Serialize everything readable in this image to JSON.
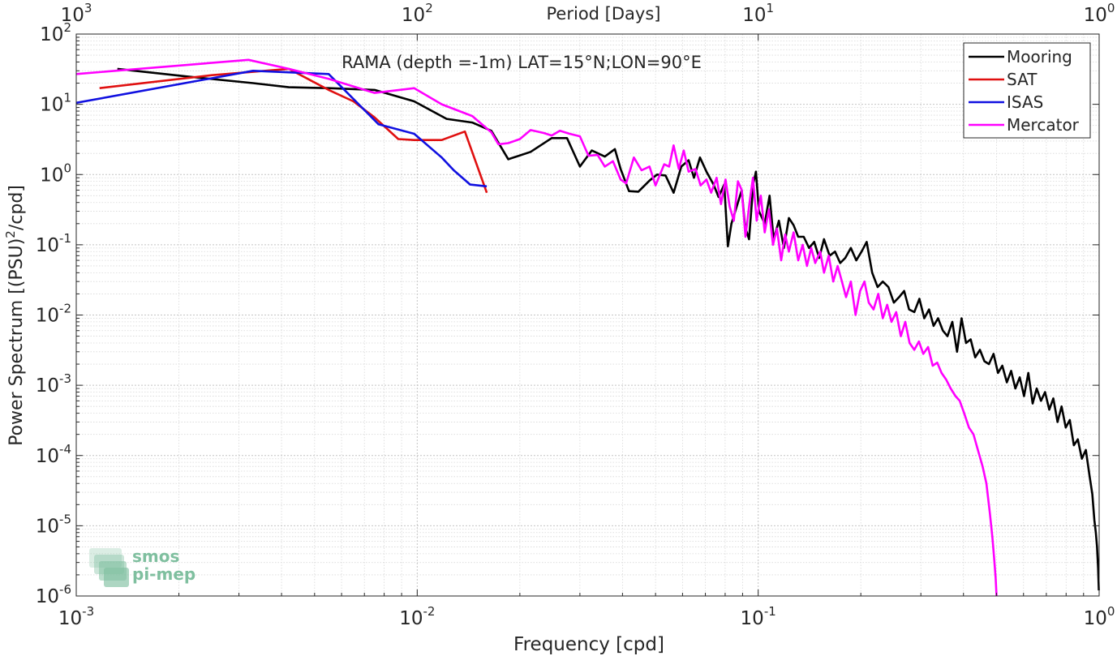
{
  "chart_data": {
    "type": "line",
    "title": "RAMA (depth =-1m) LAT=15°N;LON=90°E",
    "xlabel": "Frequency [cpd]",
    "ylabel": "Power Spectrum [(PSU)",
    "ylabel_sup": "2",
    "ylabel_tail": "/cpd]",
    "top_xlabel": "Period [Days]",
    "x_scale": "log",
    "y_scale": "log",
    "xlim": [
      0.001,
      1
    ],
    "ylim": [
      1e-06,
      100
    ],
    "grid": true,
    "legend_position": "top-right",
    "x_ticks": [
      {
        "value": 0.001,
        "base": "10",
        "exp": "-3"
      },
      {
        "value": 0.01,
        "base": "10",
        "exp": "-2"
      },
      {
        "value": 0.1,
        "base": "10",
        "exp": "-1"
      },
      {
        "value": 1,
        "base": "10",
        "exp": "0"
      }
    ],
    "top_ticks": [
      {
        "value": 0.001,
        "base": "10",
        "exp": "3"
      },
      {
        "value": 0.01,
        "base": "10",
        "exp": "2"
      },
      {
        "value": 0.1,
        "base": "10",
        "exp": "1"
      },
      {
        "value": 1,
        "base": "10",
        "exp": "0"
      }
    ],
    "y_ticks": [
      {
        "value": 100,
        "base": "10",
        "exp": "2"
      },
      {
        "value": 10,
        "base": "10",
        "exp": "1"
      },
      {
        "value": 1,
        "base": "10",
        "exp": "0"
      },
      {
        "value": 0.1,
        "base": "10",
        "exp": "-1"
      },
      {
        "value": 0.01,
        "base": "10",
        "exp": "-2"
      },
      {
        "value": 0.001,
        "base": "10",
        "exp": "-3"
      },
      {
        "value": 0.0001,
        "base": "10",
        "exp": "-4"
      },
      {
        "value": 1e-05,
        "base": "10",
        "exp": "-5"
      },
      {
        "value": 1e-06,
        "base": "10",
        "exp": "-6"
      }
    ],
    "series": [
      {
        "name": "Mooring",
        "color": "#000000",
        "points": [
          [
            0.00132,
            32
          ],
          [
            0.0021,
            25
          ],
          [
            0.0033,
            20
          ],
          [
            0.0042,
            17.5
          ],
          [
            0.0055,
            17
          ],
          [
            0.0075,
            16
          ],
          [
            0.0098,
            11
          ],
          [
            0.0122,
            6.2
          ],
          [
            0.0145,
            5.5
          ],
          [
            0.0165,
            4.2
          ],
          [
            0.0185,
            1.65
          ],
          [
            0.0215,
            2.1
          ],
          [
            0.0248,
            3.3
          ],
          [
            0.0275,
            3.3
          ],
          [
            0.03,
            1.3
          ],
          [
            0.0325,
            2.2
          ],
          [
            0.0355,
            1.8
          ],
          [
            0.038,
            2.3
          ],
          [
            0.0395,
            1.2
          ],
          [
            0.0418,
            0.58
          ],
          [
            0.0445,
            0.57
          ],
          [
            0.048,
            0.82
          ],
          [
            0.0505,
            1.0
          ],
          [
            0.0535,
            0.97
          ],
          [
            0.0565,
            0.55
          ],
          [
            0.0595,
            1.3
          ],
          [
            0.0625,
            1.6
          ],
          [
            0.0648,
            0.9
          ],
          [
            0.0675,
            1.75
          ],
          [
            0.0705,
            1.1
          ],
          [
            0.074,
            0.72
          ],
          [
            0.0765,
            0.48
          ],
          [
            0.0795,
            0.72
          ],
          [
            0.0815,
            0.095
          ],
          [
            0.0835,
            0.2
          ],
          [
            0.0865,
            0.35
          ],
          [
            0.0895,
            0.6
          ],
          [
            0.0915,
            0.18
          ],
          [
            0.094,
            0.12
          ],
          [
            0.0968,
            0.75
          ],
          [
            0.0985,
            1.1
          ],
          [
            0.1005,
            0.3
          ],
          [
            0.1045,
            0.2
          ],
          [
            0.108,
            0.5
          ],
          [
            0.111,
            0.12
          ],
          [
            0.115,
            0.22
          ],
          [
            0.119,
            0.09
          ],
          [
            0.123,
            0.24
          ],
          [
            0.127,
            0.19
          ],
          [
            0.131,
            0.13
          ],
          [
            0.136,
            0.13
          ],
          [
            0.141,
            0.09
          ],
          [
            0.146,
            0.11
          ],
          [
            0.151,
            0.065
          ],
          [
            0.156,
            0.12
          ],
          [
            0.162,
            0.07
          ],
          [
            0.168,
            0.08
          ],
          [
            0.174,
            0.055
          ],
          [
            0.18,
            0.065
          ],
          [
            0.187,
            0.09
          ],
          [
            0.194,
            0.06
          ],
          [
            0.201,
            0.08
          ],
          [
            0.208,
            0.11
          ],
          [
            0.216,
            0.04
          ],
          [
            0.224,
            0.025
          ],
          [
            0.232,
            0.03
          ],
          [
            0.241,
            0.025
          ],
          [
            0.25,
            0.015
          ],
          [
            0.259,
            0.018
          ],
          [
            0.268,
            0.022
          ],
          [
            0.277,
            0.012
          ],
          [
            0.287,
            0.011
          ],
          [
            0.297,
            0.017
          ],
          [
            0.307,
            0.009
          ],
          [
            0.317,
            0.012
          ],
          [
            0.327,
            0.007
          ],
          [
            0.337,
            0.009
          ],
          [
            0.348,
            0.006
          ],
          [
            0.359,
            0.005
          ],
          [
            0.371,
            0.008
          ],
          [
            0.383,
            0.003
          ],
          [
            0.395,
            0.009
          ],
          [
            0.407,
            0.004
          ],
          [
            0.42,
            0.0045
          ],
          [
            0.433,
            0.0025
          ],
          [
            0.447,
            0.0032
          ],
          [
            0.461,
            0.0022
          ],
          [
            0.475,
            0.002
          ],
          [
            0.49,
            0.0028
          ],
          [
            0.505,
            0.0015
          ],
          [
            0.52,
            0.0019
          ],
          [
            0.536,
            0.0011
          ],
          [
            0.552,
            0.0016
          ],
          [
            0.568,
            0.0009
          ],
          [
            0.585,
            0.0013
          ],
          [
            0.602,
            0.0007
          ],
          [
            0.62,
            0.0015
          ],
          [
            0.638,
            0.00055
          ],
          [
            0.656,
            0.0009
          ],
          [
            0.675,
            0.0006
          ],
          [
            0.694,
            0.0008
          ],
          [
            0.714,
            0.00045
          ],
          [
            0.734,
            0.00065
          ],
          [
            0.755,
            0.0003
          ],
          [
            0.776,
            0.0005
          ],
          [
            0.798,
            0.00025
          ],
          [
            0.82,
            0.00032
          ],
          [
            0.843,
            0.00014
          ],
          [
            0.866,
            0.00017
          ],
          [
            0.89,
            9e-05
          ],
          [
            0.914,
            0.00012
          ],
          [
            0.938,
            5e-05
          ],
          [
            0.955,
            2.8e-05
          ],
          [
            0.968,
            1.2e-05
          ],
          [
            0.978,
            8e-06
          ],
          [
            0.986,
            5e-06
          ],
          [
            0.993,
            2.5e-06
          ],
          [
            0.998,
            1.2e-06
          ]
        ]
      },
      {
        "name": "SAT",
        "color": "#e01010",
        "points": [
          [
            0.00117,
            17
          ],
          [
            0.0025,
            26
          ],
          [
            0.0042,
            32
          ],
          [
            0.0055,
            16
          ],
          [
            0.0065,
            11
          ],
          [
            0.0075,
            6.5
          ],
          [
            0.0088,
            3.2
          ],
          [
            0.0098,
            3.1
          ],
          [
            0.0118,
            3.1
          ],
          [
            0.0138,
            4.1
          ],
          [
            0.016,
            0.55
          ]
        ]
      },
      {
        "name": "ISAS",
        "color": "#1010e0",
        "points": [
          [
            0.001,
            10.5
          ],
          [
            0.0033,
            30
          ],
          [
            0.0055,
            27
          ],
          [
            0.0077,
            5.2
          ],
          [
            0.0098,
            3.8
          ],
          [
            0.0118,
            1.75
          ],
          [
            0.0128,
            1.15
          ],
          [
            0.0143,
            0.72
          ],
          [
            0.016,
            0.68
          ]
        ]
      },
      {
        "name": "Mercator",
        "color": "#ff00ff",
        "points": [
          [
            0.001,
            27
          ],
          [
            0.0032,
            43
          ],
          [
            0.0042,
            32
          ],
          [
            0.0055,
            23
          ],
          [
            0.0075,
            14.5
          ],
          [
            0.0098,
            17
          ],
          [
            0.0118,
            10
          ],
          [
            0.0145,
            6.8
          ],
          [
            0.0165,
            4.0
          ],
          [
            0.0173,
            2.7
          ],
          [
            0.0185,
            2.8
          ],
          [
            0.02,
            3.2
          ],
          [
            0.0215,
            4.3
          ],
          [
            0.0235,
            3.9
          ],
          [
            0.0248,
            3.6
          ],
          [
            0.0262,
            4.2
          ],
          [
            0.028,
            3.8
          ],
          [
            0.03,
            3.5
          ],
          [
            0.0318,
            1.85
          ],
          [
            0.0338,
            1.9
          ],
          [
            0.0355,
            1.3
          ],
          [
            0.0375,
            1.55
          ],
          [
            0.0395,
            0.85
          ],
          [
            0.041,
            0.75
          ],
          [
            0.0432,
            1.75
          ],
          [
            0.0455,
            1.15
          ],
          [
            0.048,
            1.3
          ],
          [
            0.05,
            0.7
          ],
          [
            0.053,
            1.4
          ],
          [
            0.0548,
            1.3
          ],
          [
            0.0565,
            2.6
          ],
          [
            0.0585,
            1.2
          ],
          [
            0.0605,
            2.2
          ],
          [
            0.0625,
            1.1
          ],
          [
            0.0655,
            1.2
          ],
          [
            0.0678,
            0.7
          ],
          [
            0.0705,
            0.85
          ],
          [
            0.0728,
            0.55
          ],
          [
            0.0755,
            0.9
          ],
          [
            0.0778,
            0.38
          ],
          [
            0.0802,
            0.85
          ],
          [
            0.0825,
            0.35
          ],
          [
            0.0848,
            0.22
          ],
          [
            0.0872,
            0.8
          ],
          [
            0.0895,
            0.6
          ],
          [
            0.0918,
            0.13
          ],
          [
            0.0942,
            0.38
          ],
          [
            0.0965,
            0.9
          ],
          [
            0.099,
            0.22
          ],
          [
            0.1018,
            0.5
          ],
          [
            0.1045,
            0.15
          ],
          [
            0.1075,
            0.32
          ],
          [
            0.1105,
            0.1
          ],
          [
            0.1135,
            0.17
          ],
          [
            0.1168,
            0.06
          ],
          [
            0.12,
            0.14
          ],
          [
            0.123,
            0.08
          ],
          [
            0.127,
            0.15
          ],
          [
            0.131,
            0.06
          ],
          [
            0.135,
            0.1
          ],
          [
            0.139,
            0.05
          ],
          [
            0.143,
            0.09
          ],
          [
            0.147,
            0.055
          ],
          [
            0.152,
            0.08
          ],
          [
            0.156,
            0.04
          ],
          [
            0.161,
            0.07
          ],
          [
            0.166,
            0.03
          ],
          [
            0.171,
            0.05
          ],
          [
            0.176,
            0.03
          ],
          [
            0.181,
            0.018
          ],
          [
            0.187,
            0.03
          ],
          [
            0.193,
            0.01
          ],
          [
            0.199,
            0.022
          ],
          [
            0.205,
            0.03
          ],
          [
            0.211,
            0.015
          ],
          [
            0.218,
            0.012
          ],
          [
            0.225,
            0.02
          ],
          [
            0.232,
            0.009
          ],
          [
            0.239,
            0.014
          ],
          [
            0.246,
            0.008
          ],
          [
            0.254,
            0.011
          ],
          [
            0.262,
            0.005
          ],
          [
            0.27,
            0.008
          ],
          [
            0.278,
            0.004
          ],
          [
            0.287,
            0.0032
          ],
          [
            0.296,
            0.0042
          ],
          [
            0.305,
            0.0028
          ],
          [
            0.315,
            0.0035
          ],
          [
            0.325,
            0.0019
          ],
          [
            0.335,
            0.0021
          ],
          [
            0.345,
            0.0015
          ],
          [
            0.356,
            0.0012
          ],
          [
            0.367,
            0.0009
          ],
          [
            0.379,
            0.0007
          ],
          [
            0.39,
            0.0006
          ],
          [
            0.402,
            0.0004
          ],
          [
            0.415,
            0.00025
          ],
          [
            0.428,
            0.0002
          ],
          [
            0.441,
            0.00012
          ],
          [
            0.455,
            7e-05
          ],
          [
            0.467,
            4e-05
          ],
          [
            0.478,
            1.5e-05
          ],
          [
            0.486,
            7e-06
          ],
          [
            0.492,
            3.5e-06
          ],
          [
            0.497,
            1.8e-06
          ],
          [
            0.5,
            1e-06
          ]
        ]
      }
    ],
    "watermark": {
      "line1": "smos",
      "line2": "pi-mep",
      "color": "#7fbf9f"
    }
  }
}
